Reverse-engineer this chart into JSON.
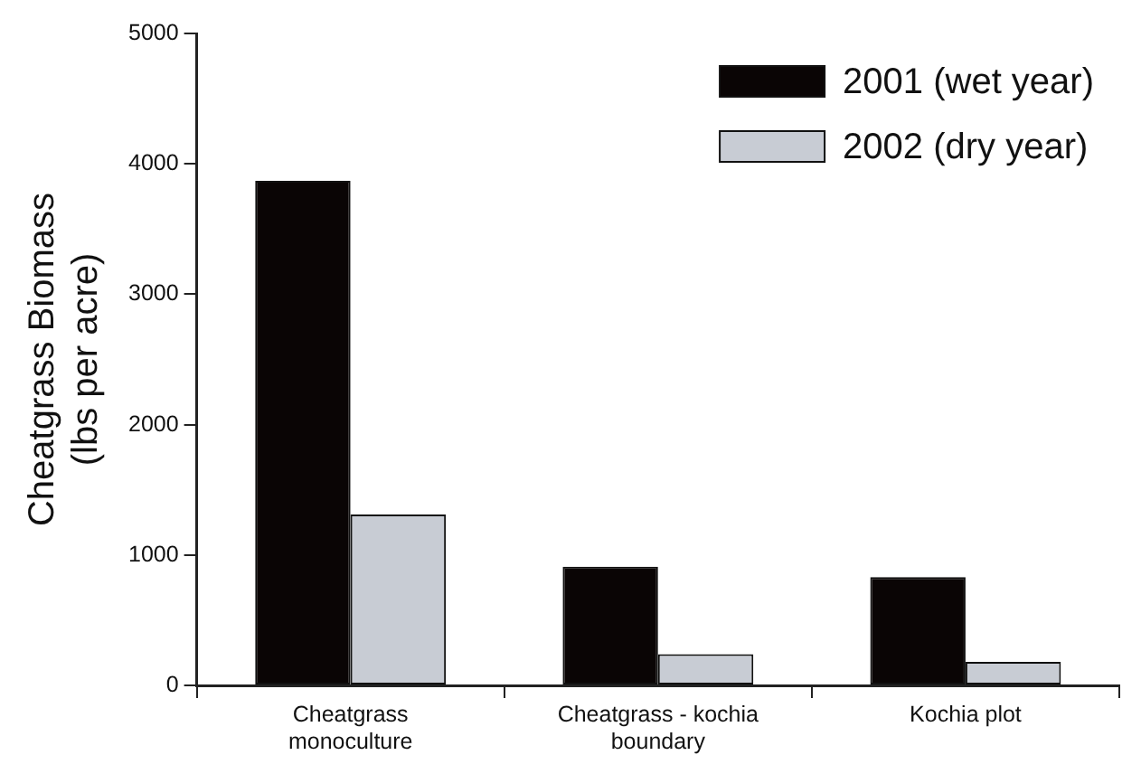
{
  "chart_data": {
    "type": "bar",
    "ylabel": "Cheatgrass Biomass\n(lbs per acre)",
    "categories": [
      "Cheatgrass\nmonoculture",
      "Cheatgrass - kochia\nboundary",
      "Kochia plot"
    ],
    "series": [
      {
        "name": "2001 (wet year)",
        "color": "#0a0505",
        "values": [
          3870,
          910,
          830
        ]
      },
      {
        "name": "2002 (dry year)",
        "color": "#c8ccd4",
        "values": [
          1310,
          240,
          180
        ]
      }
    ],
    "ylim": [
      0,
      5000
    ],
    "yticks": [
      0,
      1000,
      2000,
      3000,
      4000,
      5000
    ],
    "grid": false,
    "legend": "top right"
  }
}
